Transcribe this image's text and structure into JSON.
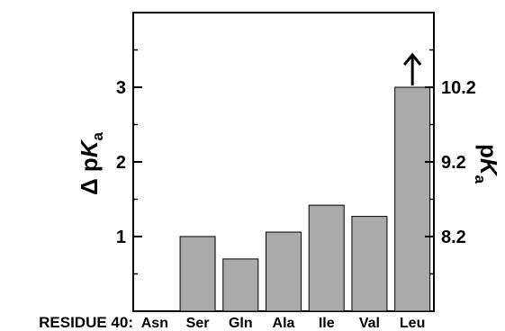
{
  "chart_data": {
    "type": "bar",
    "categories": [
      "Asn",
      "Ser",
      "Gln",
      "Ala",
      "Ile",
      "Val",
      "Leu"
    ],
    "values": [
      0,
      1.0,
      0.7,
      1.06,
      1.42,
      1.27,
      3.0
    ],
    "ylabel_left": "Δ pKa",
    "ylabel_right": "pKa",
    "ylim": [
      0,
      4
    ],
    "left_ticks": [
      "1",
      "2",
      "3"
    ],
    "left_tick_values": [
      1,
      2,
      3
    ],
    "right_ticks": [
      "8.2",
      "9.2",
      "10.2"
    ],
    "right_tick_values": [
      8.2,
      9.2,
      10.2
    ],
    "x_prefix_label": "RESIDUE 40:",
    "bar_color": "#aaaaaa",
    "arrow_on": "Leu",
    "grid": false
  }
}
